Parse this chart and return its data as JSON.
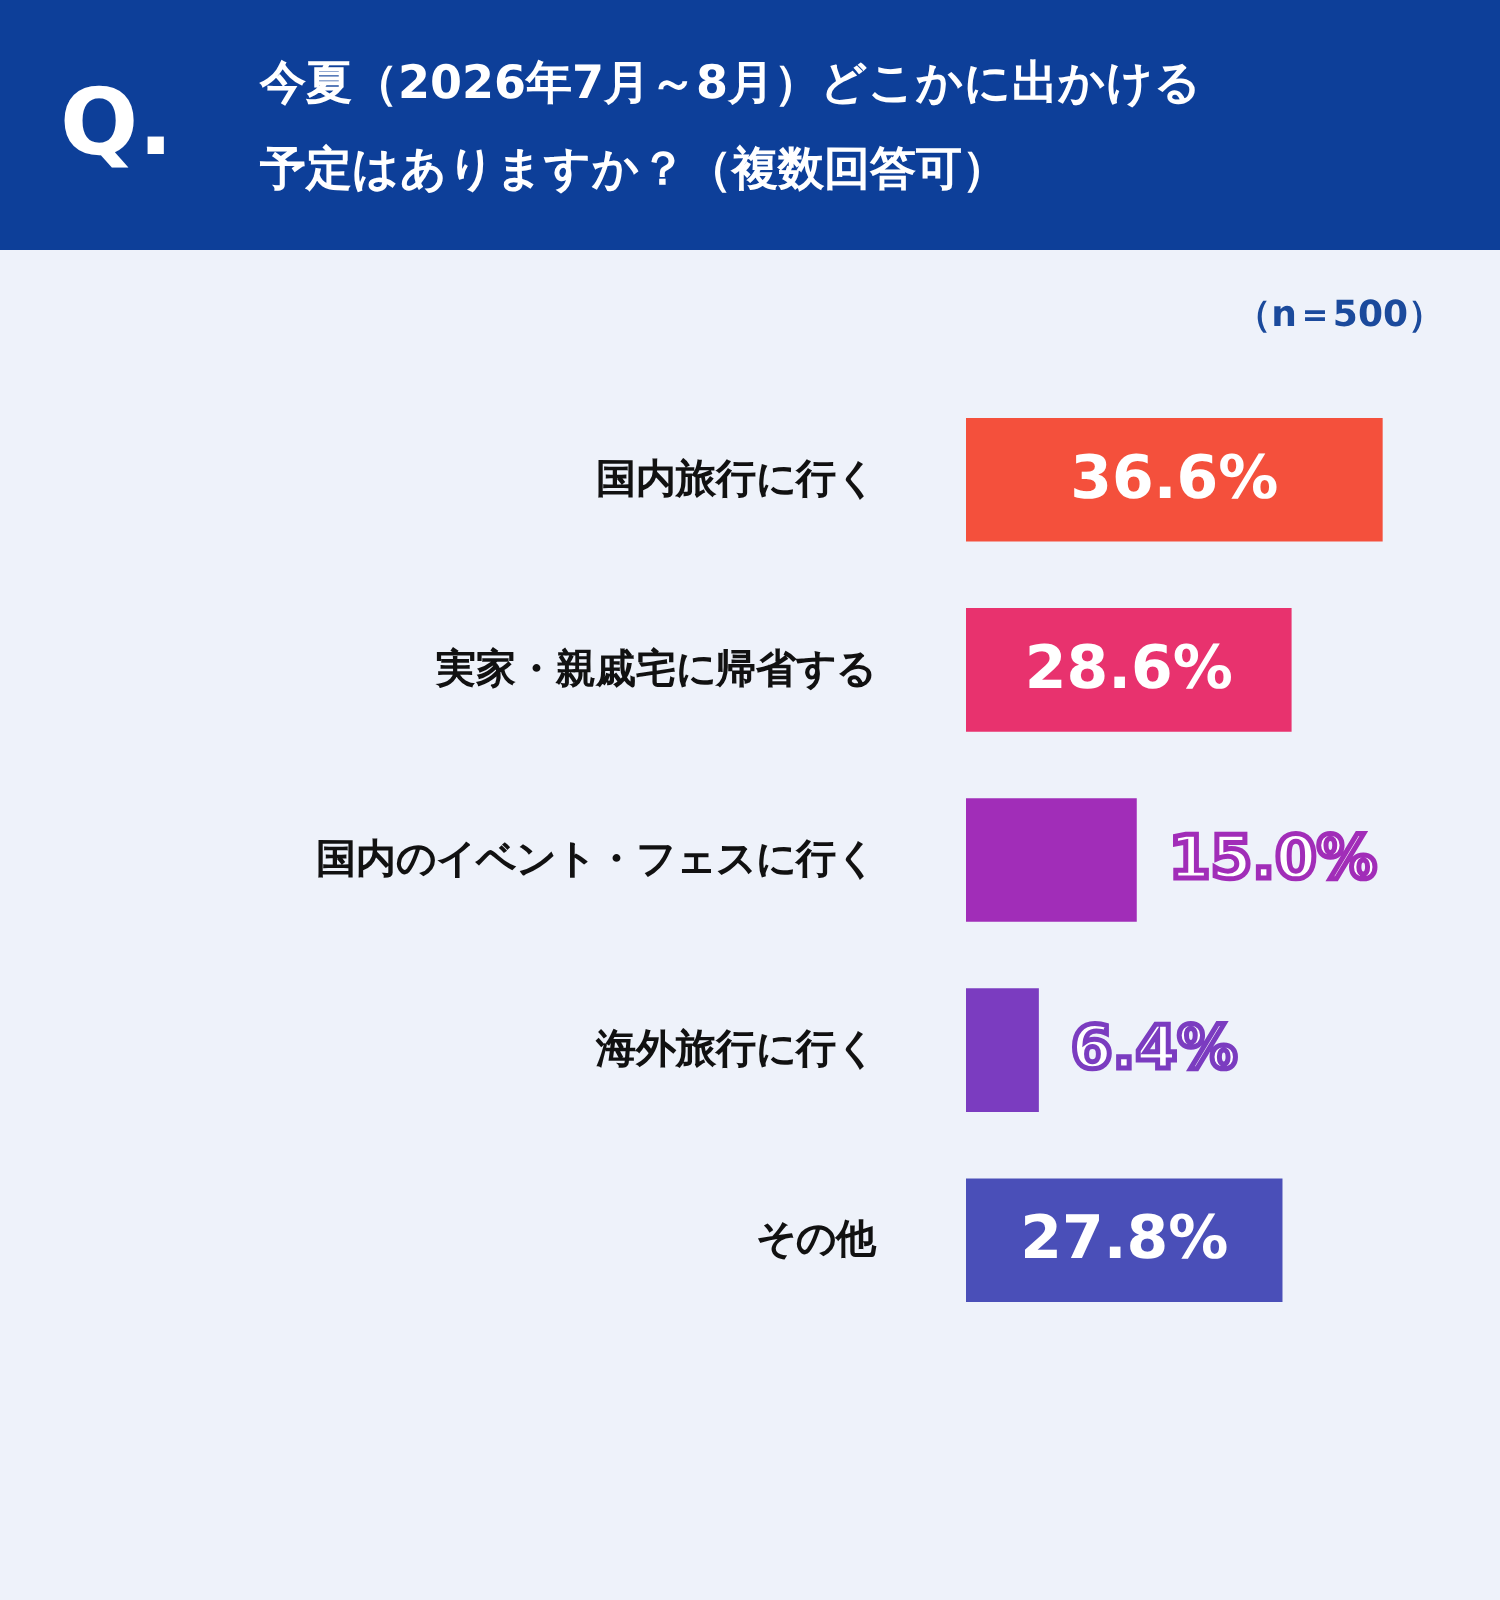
{
  "chart_data": {
    "type": "bar",
    "orientation": "horizontal",
    "title": "今夏（2026年7月～8月）どこかに出かける予定はありますか？（複数回答可）",
    "subtitle": "（n＝500）",
    "annotations": [
      "Q."
    ],
    "categories": [
      "国内旅行に行く",
      "実家・親戚宅に帰省する",
      "国内のイベント・フェスに行く",
      "海外旅行に行く",
      "その他"
    ],
    "values": [
      36.6,
      28.6,
      15.0,
      6.4,
      27.8
    ],
    "value_labels": [
      "36.6%",
      "28.6%",
      "15.0%",
      "6.4%",
      "27.8%"
    ],
    "colors": [
      "#f4503c",
      "#e8326e",
      "#a12db8",
      "#7b3cc0",
      "#4a4fb8"
    ],
    "grid": false
  }
}
